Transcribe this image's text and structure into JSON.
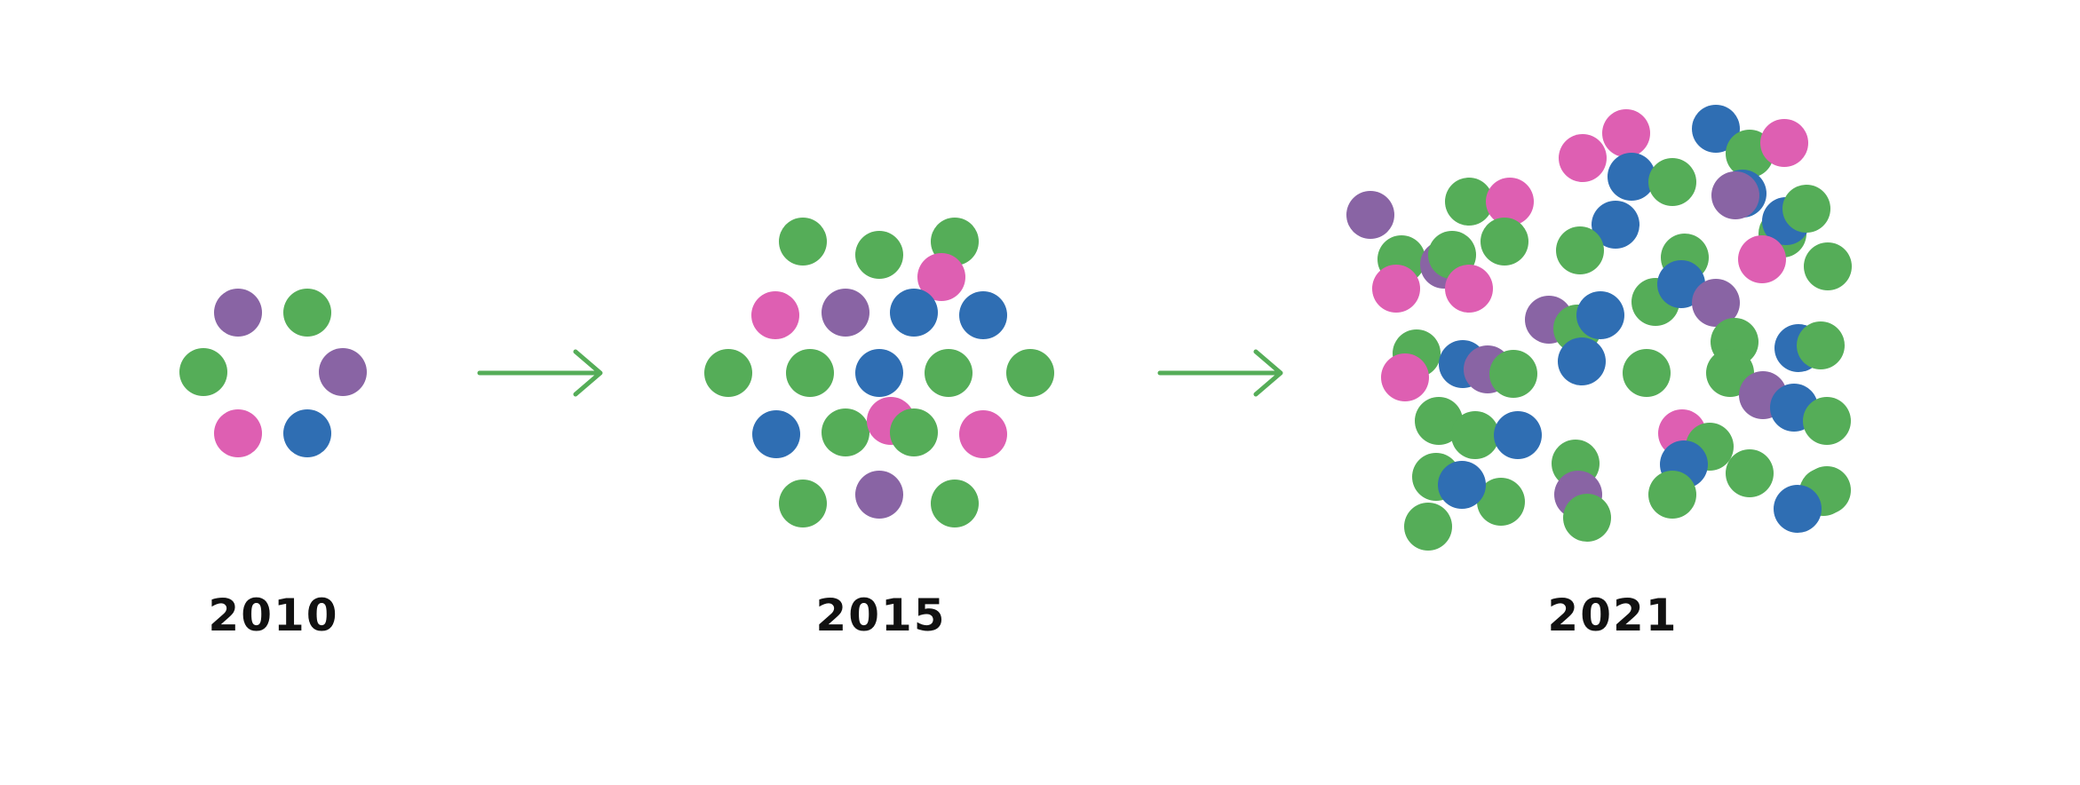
{
  "colors": {
    "green": "#55ad58",
    "purple": "#8964a4",
    "pink": "#de5fb2",
    "blue": "#2f6eb3",
    "arrow": "#55ad58",
    "text": "#111111"
  },
  "stages": [
    {
      "year": "2010",
      "dots": [
        {
          "c": "purple"
        },
        {
          "c": "green"
        },
        {
          "c": "green"
        },
        {
          "c": "purple"
        },
        {
          "c": "pink"
        },
        {
          "c": "blue"
        }
      ]
    },
    {
      "year": "2015",
      "dots": [
        {
          "c": "green"
        },
        {
          "c": "green"
        },
        {
          "c": "green"
        },
        {
          "c": "pink"
        },
        {
          "c": "pink"
        },
        {
          "c": "purple"
        },
        {
          "c": "blue"
        },
        {
          "c": "blue"
        },
        {
          "c": "green"
        },
        {
          "c": "green"
        },
        {
          "c": "blue"
        },
        {
          "c": "green"
        },
        {
          "c": "green"
        },
        {
          "c": "blue"
        },
        {
          "c": "green"
        },
        {
          "c": "pink"
        },
        {
          "c": "green"
        },
        {
          "c": "pink"
        },
        {
          "c": "green"
        },
        {
          "c": "purple"
        },
        {
          "c": "green"
        }
      ]
    },
    {
      "year": "2021",
      "dots": [
        {
          "c": "purple"
        },
        {
          "c": "green"
        },
        {
          "c": "pink"
        },
        {
          "c": "green"
        },
        {
          "c": "green"
        },
        {
          "c": "purple"
        },
        {
          "c": "green"
        },
        {
          "c": "pink"
        },
        {
          "c": "pink"
        },
        {
          "c": "pink"
        },
        {
          "c": "pink"
        },
        {
          "c": "blue"
        },
        {
          "c": "green"
        },
        {
          "c": "blue"
        },
        {
          "c": "green"
        },
        {
          "c": "pink"
        },
        {
          "c": "blue"
        },
        {
          "c": "green"
        },
        {
          "c": "blue"
        },
        {
          "c": "green"
        },
        {
          "c": "green"
        },
        {
          "c": "purple"
        },
        {
          "c": "blue"
        },
        {
          "c": "green"
        },
        {
          "c": "green"
        },
        {
          "c": "pink"
        },
        {
          "c": "blue"
        },
        {
          "c": "green"
        },
        {
          "c": "purple"
        },
        {
          "c": "green"
        },
        {
          "c": "blue"
        },
        {
          "c": "purple"
        },
        {
          "c": "green"
        },
        {
          "c": "green"
        },
        {
          "c": "pink"
        },
        {
          "c": "blue"
        },
        {
          "c": "purple"
        },
        {
          "c": "blue"
        },
        {
          "c": "green"
        },
        {
          "c": "green"
        },
        {
          "c": "green"
        },
        {
          "c": "blue"
        },
        {
          "c": "green"
        },
        {
          "c": "green"
        },
        {
          "c": "purple"
        },
        {
          "c": "blue"
        },
        {
          "c": "green"
        },
        {
          "c": "green"
        },
        {
          "c": "blue"
        },
        {
          "c": "green"
        },
        {
          "c": "green"
        },
        {
          "c": "green"
        },
        {
          "c": "pink"
        },
        {
          "c": "green"
        },
        {
          "c": "blue"
        },
        {
          "c": "green"
        },
        {
          "c": "blue"
        },
        {
          "c": "green"
        },
        {
          "c": "green"
        },
        {
          "c": "purple"
        },
        {
          "c": "green"
        },
        {
          "c": "green"
        },
        {
          "c": "green"
        },
        {
          "c": "blue"
        }
      ]
    }
  ]
}
